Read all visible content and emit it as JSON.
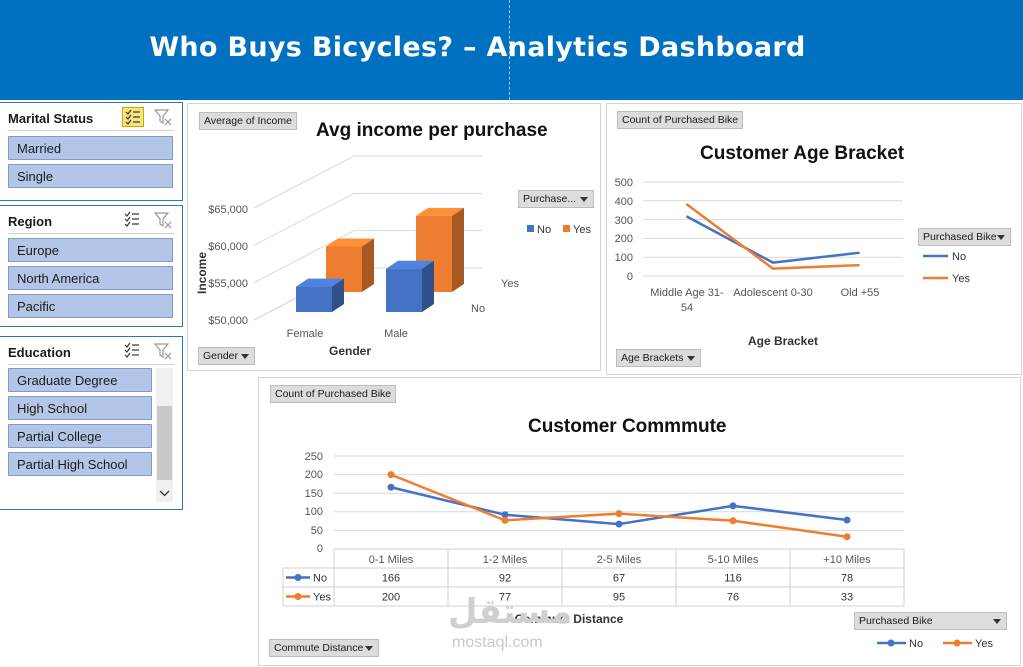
{
  "header": {
    "title": "Who Buys Bicycles? – Analytics Dashboard"
  },
  "slicers": {
    "marital": {
      "title": "Marital Status",
      "items": [
        "Married",
        "Single"
      ]
    },
    "region": {
      "title": "Region",
      "items": [
        "Europe",
        "North America",
        "Pacific"
      ]
    },
    "education": {
      "title": "Education",
      "items": [
        "Graduate Degree",
        "High School",
        "Partial College",
        "Partial High School"
      ]
    }
  },
  "income_chart": {
    "field_value": "Average of Income",
    "field_axis": "Gender",
    "field_legend": "Purchase...",
    "title": "Avg income per purchase",
    "ylabel": "Income",
    "xlabel": "Gender",
    "yticks": [
      "$65,000",
      "$60,000",
      "$55,000",
      "$50,000"
    ],
    "depth_labels": [
      "Yes",
      "No"
    ],
    "legend": [
      "No",
      "Yes"
    ]
  },
  "age_chart": {
    "field_value": "Count of Purchased Bike",
    "field_axis": "Age Brackets",
    "field_legend": "Purchased Bike",
    "title": "Customer Age Bracket",
    "xlabel": "Age Bracket",
    "yticks": [
      "500",
      "400",
      "300",
      "200",
      "100",
      "0"
    ],
    "legend": [
      "No",
      "Yes"
    ]
  },
  "commute_chart": {
    "field_value": "Count of Purchased Bike",
    "field_axis": "Commute Distance",
    "field_legend": "Purchased Bike",
    "title": "Customer Commmute",
    "xlabel": "Commute Distance",
    "yticks": [
      "250",
      "200",
      "150",
      "100",
      "50",
      "0"
    ],
    "legend": [
      "No",
      "Yes"
    ]
  },
  "watermark": {
    "logo": "مستقل",
    "text": "mostaql.com"
  },
  "chart_data": [
    {
      "type": "bar",
      "title": "Avg income per purchase",
      "xlabel": "Gender",
      "ylabel": "Income",
      "categories": [
        "Female",
        "Male"
      ],
      "series": [
        {
          "name": "No",
          "values": [
            53400,
            55800
          ]
        },
        {
          "name": "Yes",
          "values": [
            56100,
            60200
          ]
        }
      ],
      "ylim": [
        50000,
        65000
      ],
      "colors": [
        "#4472c4",
        "#ed7d31"
      ],
      "legend": "right"
    },
    {
      "type": "line",
      "title": "Customer Age Bracket",
      "xlabel": "Age Bracket",
      "categories": [
        "Middle Age 31-54",
        "Adolescent 0-30",
        "Old +55"
      ],
      "series": [
        {
          "name": "No",
          "values": [
            318,
            71,
            124
          ]
        },
        {
          "name": "Yes",
          "values": [
            383,
            39,
            58
          ]
        }
      ],
      "ylim": [
        0,
        500
      ],
      "grid": true,
      "colors": [
        "#4472c4",
        "#ed7d31"
      ],
      "legend": "right"
    },
    {
      "type": "line",
      "title": "Customer Commmute",
      "xlabel": "Commute Distance",
      "categories": [
        "0-1 Miles",
        "1-2 Miles",
        "2-5 Miles",
        "5-10 Miles",
        "+10 Miles"
      ],
      "series": [
        {
          "name": "No",
          "values": [
            166,
            92,
            67,
            116,
            78
          ]
        },
        {
          "name": "Yes",
          "values": [
            200,
            77,
            95,
            76,
            33
          ]
        }
      ],
      "ylim": [
        0,
        250
      ],
      "grid": true,
      "data_table": true,
      "colors": [
        "#4472c4",
        "#ed7d31"
      ],
      "legend": "bottom-right"
    }
  ]
}
